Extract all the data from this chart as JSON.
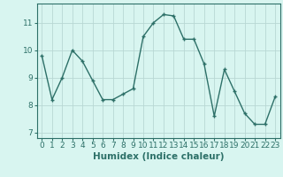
{
  "x": [
    0,
    1,
    2,
    3,
    4,
    5,
    6,
    7,
    8,
    9,
    10,
    11,
    12,
    13,
    14,
    15,
    16,
    17,
    18,
    19,
    20,
    21,
    22,
    23
  ],
  "y": [
    9.8,
    8.2,
    9.0,
    10.0,
    9.6,
    8.9,
    8.2,
    8.2,
    8.4,
    8.6,
    10.5,
    11.0,
    11.3,
    11.25,
    10.4,
    10.4,
    9.5,
    7.6,
    9.3,
    8.5,
    7.7,
    7.3,
    7.3,
    8.3
  ],
  "line_color": "#2d7068",
  "marker": "+",
  "marker_size": 3.5,
  "marker_linewidth": 1.0,
  "bg_color": "#d8f5f0",
  "grid_color": "#b8d8d4",
  "xlabel": "Humidex (Indice chaleur)",
  "ylim": [
    6.8,
    11.7
  ],
  "xlim": [
    -0.5,
    23.5
  ],
  "yticks": [
    7,
    8,
    9,
    10,
    11
  ],
  "xticks": [
    0,
    1,
    2,
    3,
    4,
    5,
    6,
    7,
    8,
    9,
    10,
    11,
    12,
    13,
    14,
    15,
    16,
    17,
    18,
    19,
    20,
    21,
    22,
    23
  ],
  "tick_fontsize": 6.5,
  "xlabel_fontsize": 7.5,
  "linewidth": 1.0
}
